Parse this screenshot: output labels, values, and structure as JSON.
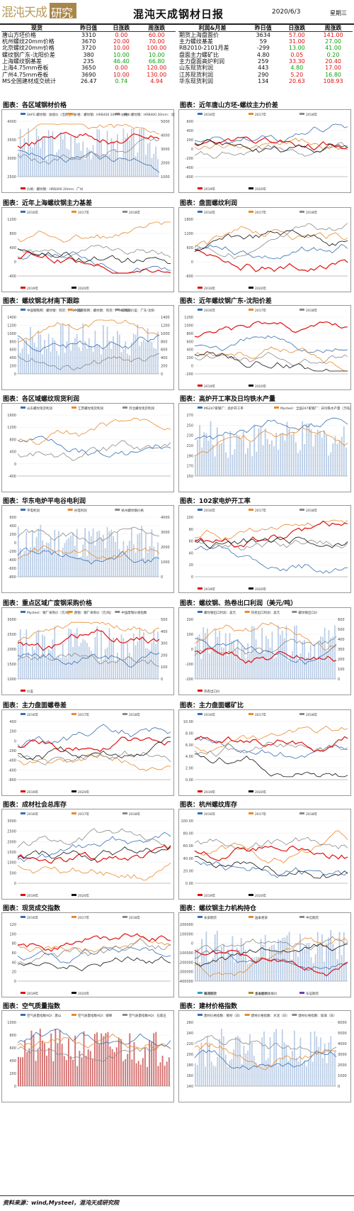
{
  "header": {
    "logo_text": "混沌天成",
    "logo_box_text": "研究院",
    "title": "混沌天成钢材日报",
    "date": "2020/6/3",
    "weekday": "星期三"
  },
  "spot_table": {
    "headers": [
      "现货",
      "昨日值",
      "日涨跌",
      "周涨跌"
    ],
    "rows": [
      {
        "name": "唐山方坯价格",
        "value": "3310",
        "day": "0.00",
        "week": "60.00",
        "day_dir": "up",
        "week_dir": "up"
      },
      {
        "name": "杭州螺纹20mm价格",
        "value": "3670",
        "day": "20.00",
        "week": "70.00",
        "day_dir": "up",
        "week_dir": "up"
      },
      {
        "name": "北京螺纹20mm价格",
        "value": "3720",
        "day": "10.00",
        "week": "100.00",
        "day_dir": "up",
        "week_dir": "up"
      },
      {
        "name": "螺纹钢广东-沈阳价差",
        "value": "380",
        "day": "10.00",
        "week": "10.00",
        "day_dir": "down",
        "week_dir": "down"
      },
      {
        "name": "上海螺纹钢基差",
        "value": "235",
        "day": "46.40",
        "week": "66.80",
        "day_dir": "down",
        "week_dir": "down"
      },
      {
        "name": "上海4.75mm卷板",
        "value": "3650",
        "day": "0.00",
        "week": "120.00",
        "day_dir": "up",
        "week_dir": "up"
      },
      {
        "name": "广州4.75mm卷板",
        "value": "3690",
        "day": "10.00",
        "week": "130.00",
        "day_dir": "up",
        "week_dir": "up"
      },
      {
        "name": "MS全国建材成交统计",
        "value": "26.47",
        "day": "0.74",
        "week": "4.94",
        "day_dir": "down",
        "week_dir": "up"
      }
    ]
  },
  "profit_table": {
    "headers": [
      "利润&月差",
      "昨日值",
      "日涨跌",
      "周涨跌"
    ],
    "rows": [
      {
        "name": "期货上海盘面价",
        "value": "3634",
        "day": "57.00",
        "week": "141.00",
        "day_dir": "up",
        "week_dir": "up"
      },
      {
        "name": "主力螺纹基差",
        "value": "59",
        "day": "31.00",
        "week": "27.00",
        "day_dir": "up",
        "week_dir": "down"
      },
      {
        "name": "RB2010-2101月差",
        "value": "-299",
        "day": "13.00",
        "week": "41.00",
        "day_dir": "down",
        "week_dir": "down"
      },
      {
        "name": "盘面主力螺矿比",
        "value": "4.80",
        "day": "0.05",
        "week": "0.20",
        "day_dir": "up",
        "week_dir": "down"
      },
      {
        "name": "主力盘面高炉利润",
        "value": "259",
        "day": "33.30",
        "week": "20.40",
        "day_dir": "up",
        "week_dir": "up"
      },
      {
        "name": "山东现货利润",
        "value": "443",
        "day": "4.80",
        "week": "17.00",
        "day_dir": "down",
        "week_dir": "up"
      },
      {
        "name": "江苏现货利润",
        "value": "290",
        "day": "5.20",
        "week": "16.80",
        "day_dir": "up",
        "week_dir": "down"
      },
      {
        "name": "华东现货利润",
        "value": "134",
        "day": "20.63",
        "week": "108.93",
        "day_dir": "up",
        "week_dir": "up"
      }
    ]
  },
  "sections": [
    {
      "title": "图表：各区域钢材价格"
    },
    {
      "title": "图表：近年唐山方坯-螺纹主力价差"
    },
    {
      "title": "图表：近年上海螺纹钢主力基差"
    },
    {
      "title": "图表：盘面螺纹利润"
    },
    {
      "title": "图表：螺纹钢北材南下跟踪"
    },
    {
      "title": "图表：近年螺纹钢广东-沈阳价差"
    },
    {
      "title": "图表：各区域螺纹现货利润"
    },
    {
      "title": "图表：高炉开工率及日均铁水产量"
    },
    {
      "title": "图表：华东电炉平电谷电利润"
    },
    {
      "title": "图表：102家电炉开工率"
    },
    {
      "title": "图表：重点区域广废钢采购价格"
    },
    {
      "title": "图表：螺纹钢、热卷出口利润（美元/吨）"
    },
    {
      "title": "图表：主力盘面螺卷差"
    },
    {
      "title": "图表：主力盘面螺矿比"
    },
    {
      "title": "图表：成材社会总库存"
    },
    {
      "title": "图表：杭州螺纹库存"
    },
    {
      "title": "图表：现货成交指数"
    },
    {
      "title": "图表：螺纹钢主力机构持仓"
    },
    {
      "title": "图表：空气质量指数"
    },
    {
      "title": "图表：建材价格指数"
    }
  ],
  "panel_content": [
    {
      "yticks": [
        "4000",
        "3500",
        "3000",
        "2500"
      ],
      "y2ticks": [
        "5000",
        "4000",
        "3000",
        "2000",
        "1000"
      ],
      "legend": [
        "SHFE:螺纹钢：收盘价（活跃合约）",
        "价格：螺纹钢：HRB400 20mm：杭州",
        "价格：螺纹钢：HRB400 20mm：北京",
        "价格：螺纹钢：HRB400 20mm：广州"
      ]
    },
    {
      "yticks": [
        "600",
        "400",
        "200",
        "0",
        "-200",
        "-400",
        "-600"
      ],
      "legend": [
        "2016年",
        "2017年",
        "2018年",
        "2019年",
        "2020年"
      ]
    },
    {
      "yticks": [
        "1200",
        "800",
        "400",
        "0",
        "-400"
      ],
      "legend": [
        "2016年",
        "2017年",
        "2018年",
        "2019年",
        "2020年"
      ]
    },
    {
      "yticks": [
        "1800",
        "1200",
        "600",
        "0",
        "-600"
      ],
      "legend": [
        "2016年",
        "2017年",
        "2018年",
        "2019年",
        "2020年"
      ]
    },
    {
      "yticks": [
        "1400",
        "1200",
        "1000",
        "800",
        "600",
        "400",
        "200",
        "0"
      ],
      "y2ticks": [
        "1400",
        "1200",
        "1000",
        "800",
        "600",
        "400",
        "200",
        "0"
      ],
      "legend": [
        "中国钢铁网：螺纹钢：到货：广州（吨）",
        "中国钢铁网：螺纹钢：到货：广州（吨）",
        "螺纹钢价差：广东-沈阳"
      ]
    },
    {
      "yticks": [
        "1200",
        "1000",
        "800",
        "600",
        "400",
        "200",
        "0",
        "-200"
      ],
      "legend": [
        "2016年",
        "2017年",
        "2018年",
        "2019年",
        "2020年"
      ]
    },
    {
      "yticks": [
        "1600",
        "1200",
        "800",
        "400",
        "0",
        "-400"
      ],
      "legend": [
        "山东螺纹现货利润",
        "江苏螺纹现货利润",
        "河北螺纹现货利润"
      ]
    },
    {
      "yticks": [
        "270",
        "250",
        "230",
        "210",
        "190",
        "170",
        "150"
      ],
      "legend": [
        "MS247家钢厂：高炉开工率",
        "Mysteel：全国247家钢厂：日均铁水产量（万吨）"
      ]
    },
    {
      "yticks": [
        "600",
        "400",
        "200",
        "0",
        "-200",
        "-400",
        "-600",
        "-800"
      ],
      "y2ticks": [
        "4000",
        "3000",
        "2000",
        "1000",
        "0"
      ],
      "legend": [
        "平电利润",
        "谷电利润",
        "杭州螺纹钢价格"
      ]
    },
    {
      "yticks": [
        "100",
        "80",
        "60",
        "40",
        "20",
        "0"
      ],
      "legend": [
        "2016年",
        "2017年",
        "2018年",
        "2019年",
        "2020年"
      ]
    },
    {
      "yticks": [
        "3000",
        "2500",
        "2000",
        "1500",
        "1000"
      ],
      "y2ticks": [
        "500",
        "400",
        "300",
        "200",
        "100",
        "0"
      ],
      "legend": [
        "Mysteel：钢厂采购价（元/吨）",
        "唐钢：钢厂采购价（元/吨）",
        "中国废钢价格指数",
        "价差"
      ]
    },
    {
      "yticks": [
        "200",
        "100",
        "0",
        "-100",
        "-200"
      ],
      "y2ticks": [
        "600",
        "500",
        "400",
        "300",
        "200",
        "100",
        "0"
      ],
      "legend": [
        "螺纹钢出口利润：美元",
        "热卷出口利润：美元",
        "螺纹钢出口价",
        "热卷出口价"
      ]
    },
    {
      "yticks": [
        "400",
        "200",
        "0",
        "-200",
        "-400",
        "-600",
        "-800"
      ],
      "legend": [
        "2016年",
        "2017年",
        "2018年",
        "2019年",
        "2020年"
      ]
    },
    {
      "yticks": [
        "10.00",
        "8.00",
        "6.00",
        "4.00",
        "2.00",
        "0.00"
      ],
      "legend": [
        "2016年",
        "2017年",
        "2018年",
        "2019年",
        "2020年"
      ]
    },
    {
      "yticks": [
        "3000",
        "2500",
        "2000",
        "1500",
        "1000",
        "500",
        "0"
      ],
      "legend": [
        "2016年",
        "2017年",
        "2018年",
        "2019年",
        "2020年"
      ]
    },
    {
      "yticks": [
        "100.00",
        "80.00",
        "60.00",
        "40.00",
        "20.00",
        "0.00"
      ],
      "legend": [
        "2016年",
        "2017年",
        "2018年",
        "2019年",
        "2020年"
      ]
    },
    {
      "yticks": [
        "120",
        "100",
        "80",
        "60",
        "40",
        "20",
        "0"
      ],
      "legend": [
        "2016年",
        "2017年",
        "2018年",
        "2019年",
        "2020年"
      ]
    },
    {
      "yticks": [
        "200000",
        "100000",
        "0",
        "-100000",
        "-200000",
        "-300000",
        "-400000"
      ],
      "legend": [
        "永安期货",
        "国泰君安",
        "中信期货",
        "银河期货",
        "华泰期货",
        "东证期货",
        "海通期货",
        "主力合约收盘价"
      ]
    },
    {
      "yticks": [
        "1000",
        "800",
        "600",
        "400",
        "200",
        "0"
      ],
      "legend": [
        "空气质量指数AQI：唐山",
        "空气质量指数AQI：邯郸",
        "空气质量指数AQI：石家庄"
      ]
    },
    {
      "yticks": [
        "260",
        "240",
        "220",
        "200",
        "180",
        "160",
        "140"
      ],
      "y2ticks": [
        "6000",
        "5000",
        "4000",
        "3000",
        "2000",
        "1000",
        "0"
      ],
      "legend": [
        "建材价格指数：钢材（日）",
        "建材价格指数：水泥（日）",
        "建材价格指数：玻璃（日）"
      ]
    }
  ],
  "footer": {
    "text": "资料来源：wind,Mysteel，混沌天成研究院"
  }
}
